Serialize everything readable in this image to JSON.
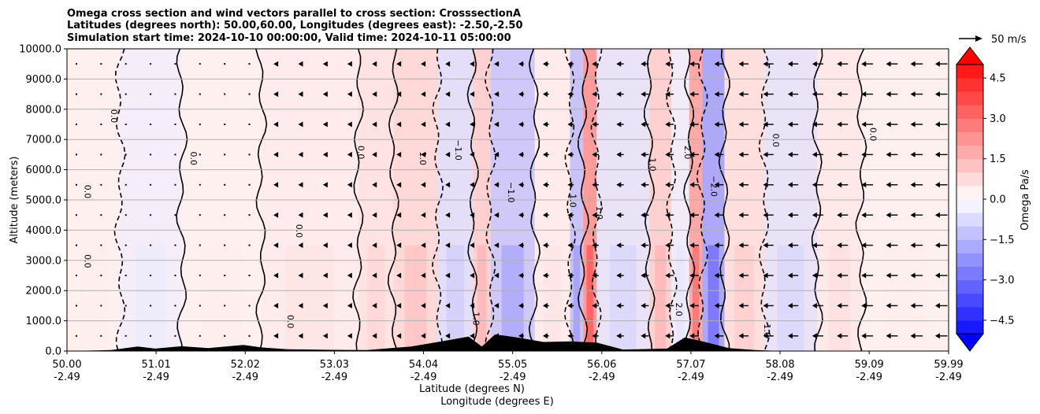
{
  "chart_data": {
    "type": "heatmap",
    "title_lines": [
      "Omega cross section and wind vectors parallel to cross section: CrosssectionA",
      "Latitudes (degrees north): 50.00,60.00, Longitudes (degrees east): -2.50,-2.50",
      "Simulation start time: 2024-10-10 00:00:00, Valid time: 2024-10-11 05:00:00"
    ],
    "ylabel": "Altitude (meters)",
    "xlabel_lat": "Latitude (degrees N)",
    "xlabel_lon": "Longitude (degrees E)",
    "xlim": [
      50.0,
      59.99
    ],
    "ylim": [
      0,
      10000
    ],
    "y_ticks": [
      0,
      1000,
      2000,
      3000,
      4000,
      5000,
      6000,
      7000,
      8000,
      9000,
      10000
    ],
    "y_tick_labels": [
      "0.0",
      "1000.0",
      "2000.0",
      "3000.0",
      "4000.0",
      "5000.0",
      "6000.0",
      "7000.0",
      "8000.0",
      "9000.0",
      "10000.0"
    ],
    "x_ticks_lat": [
      50.0,
      51.01,
      52.02,
      53.03,
      54.04,
      55.05,
      56.06,
      57.07,
      58.08,
      59.09,
      59.99
    ],
    "x_tick_labels_lat": [
      "50.00",
      "51.01",
      "52.02",
      "53.03",
      "54.04",
      "55.05",
      "56.06",
      "57.07",
      "58.08",
      "59.09",
      "59.99"
    ],
    "x_tick_labels_lon": [
      "-2.49",
      "-2.49",
      "-2.49",
      "-2.49",
      "-2.49",
      "-2.49",
      "-2.49",
      "-2.49",
      "-2.49",
      "-2.49",
      "-2.49"
    ],
    "colorbar": {
      "label": "Omega Pa/s",
      "range": [
        -5.0,
        5.0
      ],
      "ticks": [
        -4.5,
        -3.0,
        -1.5,
        0.0,
        1.5,
        3.0,
        4.5
      ],
      "tick_labels": [
        "−4.5",
        "−3.0",
        "−1.5",
        "0.0",
        "1.5",
        "3.0",
        "4.5"
      ],
      "extend": "both",
      "cmap": "bwr"
    },
    "quiver_key": {
      "label": "50 m/s",
      "speed": 50
    },
    "contour_labels": [
      "0.0",
      "1.0",
      "−1.0",
      "2.0",
      "−2.0"
    ],
    "omega_bands": [
      {
        "lat_start": 50.0,
        "lat_end": 50.6,
        "omega": 0.3
      },
      {
        "lat_start": 50.6,
        "lat_end": 51.3,
        "omega": -0.4
      },
      {
        "lat_start": 51.3,
        "lat_end": 52.2,
        "omega": 0.3
      },
      {
        "lat_start": 52.2,
        "lat_end": 53.3,
        "omega": 0.5
      },
      {
        "lat_start": 53.3,
        "lat_end": 53.7,
        "omega": 0.8
      },
      {
        "lat_start": 53.7,
        "lat_end": 54.2,
        "omega": 1.2
      },
      {
        "lat_start": 54.2,
        "lat_end": 54.6,
        "omega": -1.0
      },
      {
        "lat_start": 54.6,
        "lat_end": 54.8,
        "omega": 1.5
      },
      {
        "lat_start": 54.8,
        "lat_end": 55.3,
        "omega": -1.8
      },
      {
        "lat_start": 55.3,
        "lat_end": 55.7,
        "omega": 0.5
      },
      {
        "lat_start": 55.7,
        "lat_end": 55.85,
        "omega": -2.0
      },
      {
        "lat_start": 55.85,
        "lat_end": 56.0,
        "omega": 3.5
      },
      {
        "lat_start": 56.0,
        "lat_end": 56.6,
        "omega": -0.8
      },
      {
        "lat_start": 56.6,
        "lat_end": 56.85,
        "omega": 1.5
      },
      {
        "lat_start": 56.85,
        "lat_end": 57.05,
        "omega": -0.5
      },
      {
        "lat_start": 57.05,
        "lat_end": 57.2,
        "omega": 3.0
      },
      {
        "lat_start": 57.2,
        "lat_end": 57.45,
        "omega": -3.0
      },
      {
        "lat_start": 57.45,
        "lat_end": 57.9,
        "omega": 1.0
      },
      {
        "lat_start": 57.9,
        "lat_end": 58.5,
        "omega": -0.8
      },
      {
        "lat_start": 58.5,
        "lat_end": 59.0,
        "omega": 0.6
      },
      {
        "lat_start": 59.0,
        "lat_end": 59.99,
        "omega": 0.3
      }
    ],
    "wind_columns_lat": [
      50.0,
      50.28,
      50.56,
      50.84,
      51.12,
      51.4,
      51.68,
      51.96,
      52.24,
      52.52,
      52.8,
      53.08,
      53.36,
      53.64,
      53.92,
      54.2,
      54.48,
      54.76,
      55.04,
      55.32,
      55.6,
      55.88,
      56.16,
      56.44,
      56.72,
      57.0,
      57.28,
      57.56,
      57.84,
      58.12,
      58.4,
      58.68,
      58.96,
      59.24,
      59.52,
      59.8
    ],
    "wind_levels_m": [
      500,
      1500,
      2500,
      3500,
      4500,
      5500,
      6500,
      7500,
      8500,
      9500
    ],
    "wind_speed_by_column_ms": [
      0,
      0,
      0,
      1,
      1,
      1,
      1,
      1,
      2,
      2,
      2,
      3,
      3,
      4,
      5,
      6,
      7,
      8,
      9,
      10,
      10,
      11,
      12,
      13,
      14,
      15,
      15,
      16,
      17,
      17,
      18,
      18,
      19,
      19,
      20,
      20
    ],
    "terrain": [
      {
        "lat": 50.0,
        "h": 0
      },
      {
        "lat": 50.5,
        "h": 30
      },
      {
        "lat": 50.8,
        "h": 150
      },
      {
        "lat": 51.0,
        "h": 80
      },
      {
        "lat": 51.3,
        "h": 160
      },
      {
        "lat": 51.6,
        "h": 100
      },
      {
        "lat": 52.0,
        "h": 200
      },
      {
        "lat": 52.2,
        "h": 120
      },
      {
        "lat": 52.5,
        "h": 60
      },
      {
        "lat": 53.0,
        "h": 40
      },
      {
        "lat": 53.4,
        "h": 30
      },
      {
        "lat": 53.9,
        "h": 150
      },
      {
        "lat": 54.3,
        "h": 350
      },
      {
        "lat": 54.55,
        "h": 480
      },
      {
        "lat": 54.7,
        "h": 150
      },
      {
        "lat": 54.85,
        "h": 550
      },
      {
        "lat": 55.1,
        "h": 450
      },
      {
        "lat": 55.4,
        "h": 300
      },
      {
        "lat": 55.7,
        "h": 320
      },
      {
        "lat": 56.0,
        "h": 280
      },
      {
        "lat": 56.3,
        "h": 50
      },
      {
        "lat": 56.8,
        "h": 80
      },
      {
        "lat": 57.0,
        "h": 450
      },
      {
        "lat": 57.2,
        "h": 320
      },
      {
        "lat": 57.5,
        "h": 100
      },
      {
        "lat": 57.8,
        "h": 30
      },
      {
        "lat": 58.1,
        "h": 0
      },
      {
        "lat": 59.99,
        "h": 0
      }
    ]
  }
}
